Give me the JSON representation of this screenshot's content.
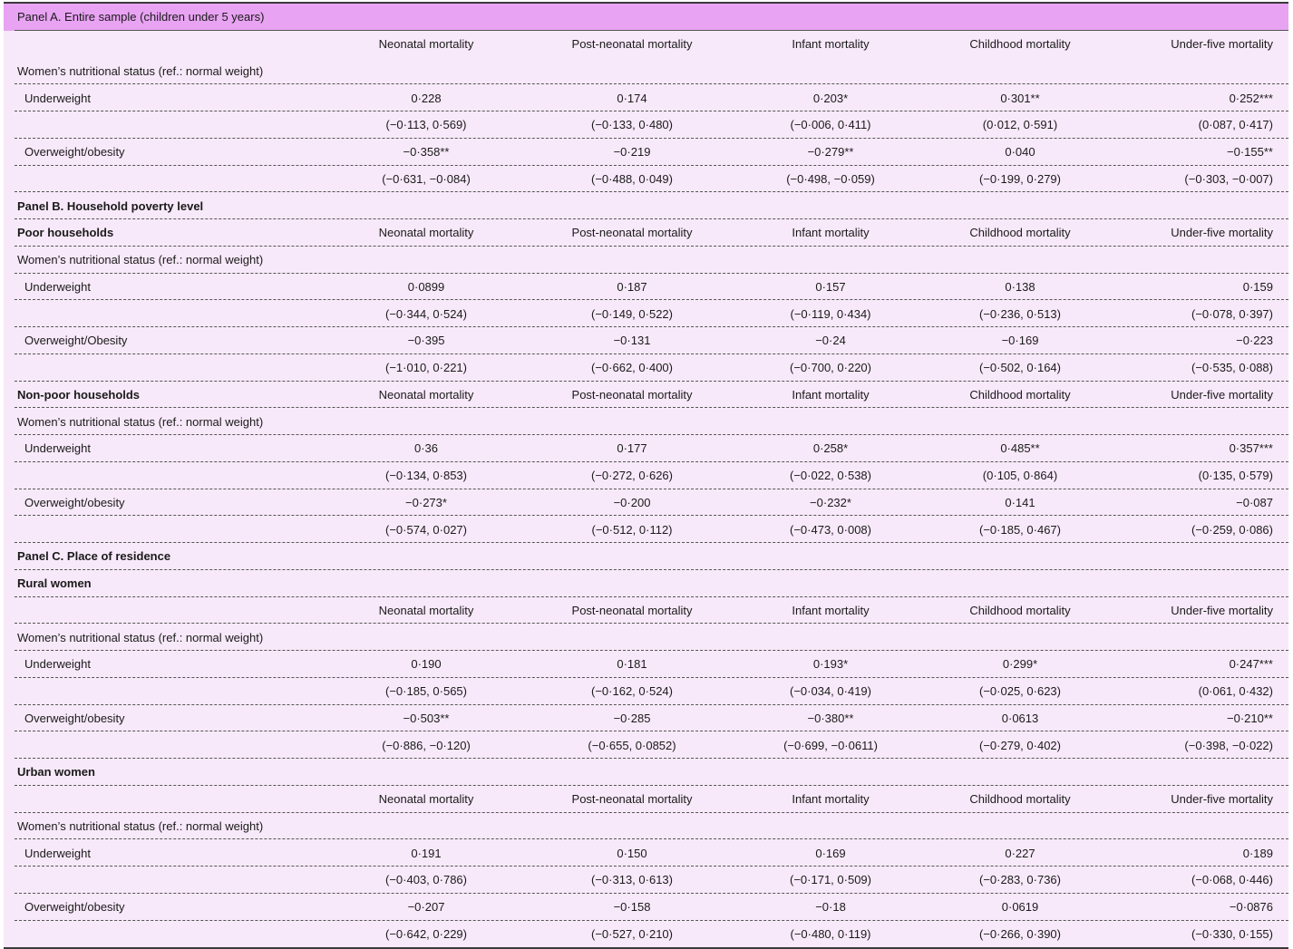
{
  "table": {
    "columns": [
      "Neonatal mortality",
      "Post-neonatal mortality",
      "Infant mortality",
      "Childhood mortality",
      "Under-five mortality"
    ],
    "rows": [
      {
        "kind": "band",
        "label": "Panel A. Entire sample (children under 5 years)",
        "bold": false,
        "line": "solid"
      },
      {
        "kind": "header",
        "label": "",
        "bold": false,
        "line": "none"
      },
      {
        "kind": "label",
        "label": "Women’s nutritional status (ref.: normal weight)",
        "bold": false,
        "line": "dash"
      },
      {
        "kind": "data",
        "label": "Underweight",
        "values": [
          "0·228",
          "0·174",
          "0·203*",
          "0·301**",
          "0·252***"
        ],
        "line": "dash"
      },
      {
        "kind": "data",
        "label": "",
        "values": [
          "(−0·113, 0·569)",
          "(−0·133, 0·480)",
          "(−0·006, 0·411)",
          "(0·012, 0·591)",
          "(0·087, 0·417)"
        ],
        "line": "dash"
      },
      {
        "kind": "data",
        "label": "Overweight/obesity",
        "values": [
          "−0·358**",
          "−0·219",
          "−0·279**",
          "0·040",
          "−0·155**"
        ],
        "line": "dash"
      },
      {
        "kind": "data",
        "label": "",
        "values": [
          "(−0·631, −0·084)",
          "(−0·488, 0·049)",
          "(−0·498, −0·059)",
          "(−0·199, 0·279)",
          "(−0·303, −0·007)"
        ],
        "line": "dash"
      },
      {
        "kind": "label",
        "label": "Panel B. Household poverty level",
        "bold": true,
        "line": "dash"
      },
      {
        "kind": "header",
        "label": "Poor households",
        "bold": true,
        "line": "dash"
      },
      {
        "kind": "label",
        "label": "Women’s nutritional status (ref.: normal weight)",
        "bold": false,
        "line": "dash"
      },
      {
        "kind": "data",
        "label": "Underweight",
        "values": [
          "0·0899",
          "0·187",
          "0·157",
          "0·138",
          "0·159"
        ],
        "line": "dash"
      },
      {
        "kind": "data",
        "label": "",
        "values": [
          "(−0·344, 0·524)",
          "(−0·149, 0·522)",
          "(−0·119, 0·434)",
          "(−0·236, 0·513)",
          "(−0·078, 0·397)"
        ],
        "line": "dash"
      },
      {
        "kind": "data",
        "label": "Overweight/Obesity",
        "values": [
          "−0·395",
          "−0·131",
          "−0·24",
          "−0·169",
          "−0·223"
        ],
        "line": "dash"
      },
      {
        "kind": "data",
        "label": "",
        "values": [
          "(−1·010, 0·221)",
          "(−0·662, 0·400)",
          "(−0·700, 0·220)",
          "(−0·502, 0·164)",
          "(−0·535, 0·088)"
        ],
        "line": "dash"
      },
      {
        "kind": "header",
        "label": "Non-poor households",
        "bold": true,
        "line": "dash"
      },
      {
        "kind": "label",
        "label": "Women’s nutritional status (ref.: normal weight)",
        "bold": false,
        "line": "dash"
      },
      {
        "kind": "data",
        "label": "Underweight",
        "values": [
          "0·36",
          "0·177",
          "0·258*",
          "0·485**",
          "0·357***"
        ],
        "line": "dash"
      },
      {
        "kind": "data",
        "label": "",
        "values": [
          "(−0·134, 0·853)",
          "(−0·272, 0·626)",
          "(−0·022, 0·538)",
          "(0·105, 0·864)",
          "(0·135, 0·579)"
        ],
        "line": "dash"
      },
      {
        "kind": "data",
        "label": "Overweight/obesity",
        "values": [
          "−0·273*",
          "−0·200",
          "−0·232*",
          "0·141",
          "−0·087"
        ],
        "line": "dash"
      },
      {
        "kind": "data",
        "label": "",
        "values": [
          "(−0·574, 0·027)",
          "(−0·512, 0·112)",
          "(−0·473, 0·008)",
          "(−0·185, 0·467)",
          "(−0·259, 0·086)"
        ],
        "line": "dash"
      },
      {
        "kind": "label",
        "label": "Panel C. Place of residence",
        "bold": true,
        "line": "dash"
      },
      {
        "kind": "label",
        "label": "Rural women",
        "bold": true,
        "line": "dash"
      },
      {
        "kind": "header",
        "label": "",
        "bold": false,
        "line": "dash"
      },
      {
        "kind": "label",
        "label": "Women’s nutritional status (ref.: normal weight)",
        "bold": false,
        "line": "dash"
      },
      {
        "kind": "data",
        "label": "Underweight",
        "values": [
          "0·190",
          "0·181",
          "0·193*",
          "0·299*",
          "0·247***"
        ],
        "line": "dash"
      },
      {
        "kind": "data",
        "label": "",
        "values": [
          "(−0·185, 0·565)",
          "(−0·162, 0·524)",
          "(−0·034, 0·419)",
          "(−0·025, 0·623)",
          "(0·061, 0·432)"
        ],
        "line": "dash"
      },
      {
        "kind": "data",
        "label": "Overweight/obesity",
        "values": [
          "−0·503**",
          "−0·285",
          "−0·380**",
          "0·0613",
          "−0·210**"
        ],
        "line": "dash"
      },
      {
        "kind": "data",
        "label": "",
        "values": [
          "(−0·886, −0·120)",
          "(−0·655, 0·0852)",
          "(−0·699, −0·0611)",
          "(−0·279, 0·402)",
          "(−0·398, −0·022)"
        ],
        "line": "dash"
      },
      {
        "kind": "label",
        "label": "Urban women",
        "bold": true,
        "line": "dash"
      },
      {
        "kind": "header",
        "label": "",
        "bold": false,
        "line": "dash"
      },
      {
        "kind": "label",
        "label": "Women’s nutritional status (ref.: normal weight)",
        "bold": false,
        "line": "dash"
      },
      {
        "kind": "data",
        "label": "Underweight",
        "values": [
          "0·191",
          "0·150",
          "0·169",
          "0·227",
          "0·189"
        ],
        "line": "dash"
      },
      {
        "kind": "data",
        "label": "",
        "values": [
          "(−0·403, 0·786)",
          "(−0·313, 0·613)",
          "(−0·171, 0·509)",
          "(−0·283, 0·736)",
          "(−0·068, 0·446)"
        ],
        "line": "dash"
      },
      {
        "kind": "data",
        "label": "Overweight/obesity",
        "values": [
          "−0·207",
          "−0·158",
          "−0·18",
          "0·0619",
          "−0·0876"
        ],
        "line": "dash"
      },
      {
        "kind": "data",
        "label": "",
        "values": [
          "(−0·642, 0·229)",
          "(−0·527, 0·210)",
          "(−0·480, 0·119)",
          "(−0·266, 0·390)",
          "(−0·330, 0·155)"
        ],
        "line": "none"
      }
    ]
  }
}
